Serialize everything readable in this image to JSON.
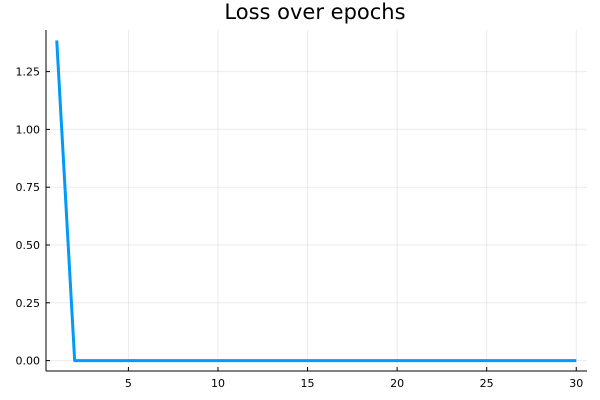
{
  "chart_data": {
    "type": "line",
    "title": "Loss over epochs",
    "xlabel": "",
    "ylabel": "",
    "xlim": [
      0.4,
      30.6
    ],
    "ylim": [
      -0.045,
      1.43
    ],
    "xticks": [
      5,
      10,
      15,
      20,
      25,
      30
    ],
    "xtick_labels": [
      "5",
      "10",
      "15",
      "20",
      "25",
      "30"
    ],
    "yticks": [
      0,
      0.25,
      0.5,
      0.75,
      1.0,
      1.25
    ],
    "ytick_labels": [
      "0.00",
      "0.25",
      "0.50",
      "0.75",
      "1.00",
      "1.25"
    ],
    "grid": true,
    "legend": "none",
    "series": [
      {
        "color": "#009AFA",
        "x": [
          1,
          2,
          3,
          4,
          5,
          6,
          7,
          8,
          9,
          10,
          11,
          12,
          13,
          14,
          15,
          16,
          17,
          18,
          19,
          20,
          21,
          22,
          23,
          24,
          25,
          26,
          27,
          28,
          29,
          30
        ],
        "y": [
          1.385,
          0,
          0,
          0,
          0,
          0,
          0,
          0,
          0,
          0,
          0,
          0,
          0,
          0,
          0,
          0,
          0,
          0,
          0,
          0,
          0,
          0,
          0,
          0,
          0,
          0,
          0,
          0,
          0,
          0
        ]
      }
    ]
  }
}
